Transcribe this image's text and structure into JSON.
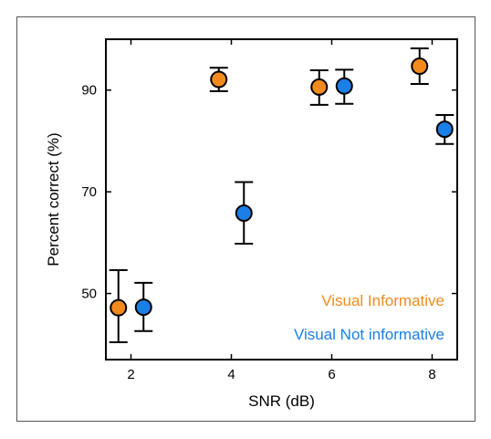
{
  "chart_data": {
    "type": "scatter",
    "title": "",
    "xlabel": "SNR (dB)",
    "ylabel": "Percent correct (%)",
    "xlim": [
      1.5,
      8.5
    ],
    "ylim": [
      37,
      100
    ],
    "xticks": [
      "2",
      "4",
      "6",
      "8"
    ],
    "yticks": [
      "50",
      "70",
      "90"
    ],
    "grid": false,
    "legend_position": "bottom-right",
    "error_bars": true,
    "series": [
      {
        "name": "Visual Informative",
        "color": "#f28a1e",
        "points": [
          {
            "x": 1.75,
            "y": 47.2,
            "err_low": 40.4,
            "err_high": 54.6
          },
          {
            "x": 3.75,
            "y": 92.1,
            "err_low": 89.8,
            "err_high": 94.4
          },
          {
            "x": 5.75,
            "y": 90.6,
            "err_low": 87.1,
            "err_high": 93.9
          },
          {
            "x": 7.75,
            "y": 94.7,
            "err_low": 91.2,
            "err_high": 98.2
          }
        ]
      },
      {
        "name": "Visual Not informative",
        "color": "#1a7fe6",
        "points": [
          {
            "x": 2.25,
            "y": 47.3,
            "err_low": 42.6,
            "err_high": 52.1
          },
          {
            "x": 4.25,
            "y": 65.8,
            "err_low": 59.8,
            "err_high": 71.9
          },
          {
            "x": 6.25,
            "y": 90.8,
            "err_low": 87.3,
            "err_high": 94.0
          },
          {
            "x": 8.25,
            "y": 82.3,
            "err_low": 79.4,
            "err_high": 85.1
          }
        ]
      }
    ]
  }
}
